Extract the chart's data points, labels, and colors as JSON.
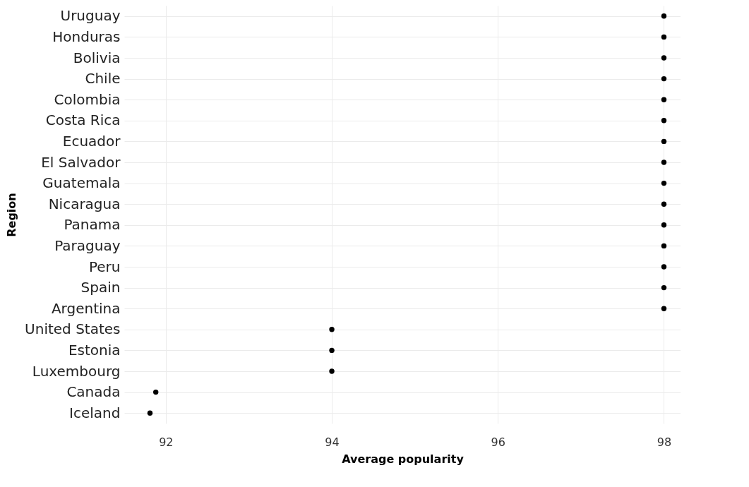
{
  "chart_data": {
    "type": "scatter",
    "xlabel": "Average popularity",
    "ylabel": "Region",
    "categories": [
      "Uruguay",
      "Honduras",
      "Bolivia",
      "Chile",
      "Colombia",
      "Costa Rica",
      "Ecuador",
      "El Salvador",
      "Guatemala",
      "Nicaragua",
      "Panama",
      "Paraguay",
      "Peru",
      "Spain",
      "Argentina",
      "United States",
      "Estonia",
      "Luxembourg",
      "Canada",
      "Iceland"
    ],
    "values": [
      98,
      98,
      98,
      98,
      98,
      98,
      98,
      98,
      98,
      98,
      98,
      98,
      98,
      98,
      98,
      94,
      94,
      94,
      91.88,
      91.81
    ],
    "color": "#000000",
    "orientation": "horizontal",
    "xlim": [
      91.5,
      98.2
    ],
    "xticks": [
      92,
      94,
      96,
      98
    ],
    "grid": true,
    "marker": "circle"
  }
}
